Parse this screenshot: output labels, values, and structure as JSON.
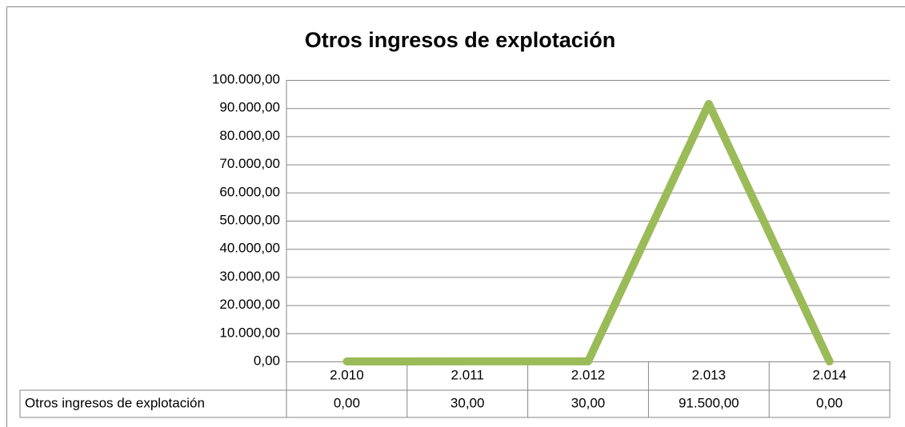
{
  "chart_data": {
    "type": "line",
    "title": "Otros ingresos de explotación",
    "categories": [
      "2.010",
      "2.011",
      "2.012",
      "2.013",
      "2.014"
    ],
    "series": [
      {
        "name": "Otros ingresos de explotación",
        "color": "#9bbb59",
        "values": [
          0,
          30,
          30,
          91500,
          0
        ],
        "value_labels": [
          "0,00",
          "30,00",
          "30,00",
          "91.500,00",
          "0,00"
        ]
      }
    ],
    "ylim": [
      0,
      100000
    ],
    "yticks": [
      {
        "value": 0,
        "label": "0,00"
      },
      {
        "value": 10000,
        "label": "10.000,00"
      },
      {
        "value": 20000,
        "label": "20.000,00"
      },
      {
        "value": 30000,
        "label": "30.000,00"
      },
      {
        "value": 40000,
        "label": "40.000,00"
      },
      {
        "value": 50000,
        "label": "50.000,00"
      },
      {
        "value": 60000,
        "label": "60.000,00"
      },
      {
        "value": 70000,
        "label": "70.000,00"
      },
      {
        "value": 80000,
        "label": "80.000,00"
      },
      {
        "value": 90000,
        "label": "90.000,00"
      },
      {
        "value": 100000,
        "label": "100.000,00"
      }
    ],
    "grid": true
  }
}
